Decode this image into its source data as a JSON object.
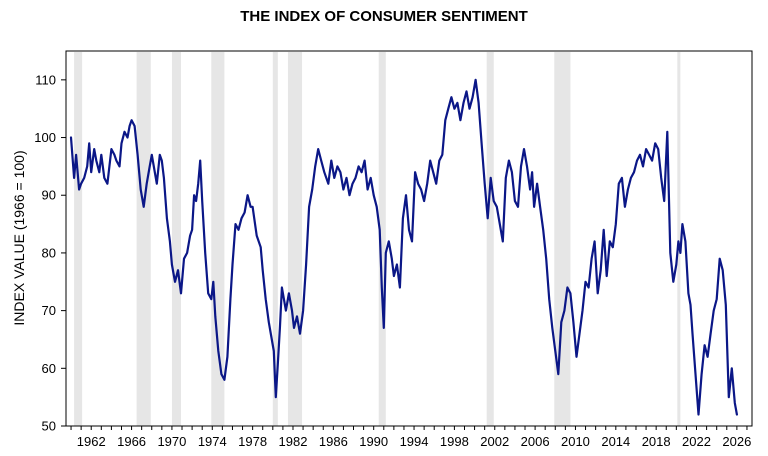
{
  "chart_data": {
    "type": "line",
    "title": "THE INDEX OF CONSUMER SENTIMENT",
    "xlabel": "",
    "ylabel": "INDEX VALUE (1966 = 100)",
    "ylim": [
      50,
      115
    ],
    "xlim": [
      1959.5,
      2027.5
    ],
    "y_ticks": [
      50,
      60,
      70,
      80,
      90,
      100,
      110
    ],
    "x_ticks": [
      1962,
      1966,
      1970,
      1974,
      1978,
      1982,
      1986,
      1990,
      1994,
      1998,
      2002,
      2006,
      2010,
      2014,
      2018,
      2022,
      2026
    ],
    "grid": false,
    "line_color": "#0b1787",
    "recession_color": "#e6e6e6",
    "recessions": [
      [
        1960.3,
        1961.1
      ],
      [
        1966.5,
        1967.9
      ],
      [
        1970.0,
        1970.9
      ],
      [
        1973.9,
        1975.2
      ],
      [
        1980.0,
        1980.5
      ],
      [
        1981.5,
        1982.9
      ],
      [
        1990.5,
        1991.2
      ],
      [
        2001.2,
        2001.9
      ],
      [
        2007.9,
        2009.5
      ],
      [
        2020.1,
        2020.4
      ]
    ],
    "series": [
      {
        "name": "",
        "x": [
          1960.0,
          1960.3,
          1960.5,
          1960.8,
          1961.0,
          1961.3,
          1961.6,
          1961.8,
          1962.0,
          1962.3,
          1962.5,
          1962.8,
          1963.0,
          1963.3,
          1963.6,
          1963.8,
          1964.0,
          1964.3,
          1964.5,
          1964.8,
          1965.0,
          1965.3,
          1965.6,
          1965.8,
          1966.0,
          1966.3,
          1966.6,
          1966.9,
          1967.2,
          1967.5,
          1967.8,
          1968.0,
          1968.3,
          1968.5,
          1968.8,
          1969.0,
          1969.2,
          1969.5,
          1969.8,
          1970.0,
          1970.3,
          1970.6,
          1970.9,
          1971.2,
          1971.5,
          1971.8,
          1972.0,
          1972.2,
          1972.4,
          1972.6,
          1972.8,
          1973.0,
          1973.3,
          1973.6,
          1973.9,
          1974.1,
          1974.3,
          1974.6,
          1974.9,
          1975.2,
          1975.5,
          1975.8,
          1976.0,
          1976.3,
          1976.6,
          1976.9,
          1977.2,
          1977.5,
          1977.8,
          1978.0,
          1978.4,
          1978.8,
          1979.0,
          1979.3,
          1979.6,
          1979.9,
          1980.1,
          1980.3,
          1980.5,
          1980.7,
          1980.9,
          1981.1,
          1981.3,
          1981.6,
          1981.9,
          1982.1,
          1982.4,
          1982.7,
          1983.0,
          1983.3,
          1983.6,
          1983.9,
          1984.2,
          1984.5,
          1984.8,
          1985.1,
          1985.5,
          1985.8,
          1986.1,
          1986.4,
          1986.7,
          1987.0,
          1987.3,
          1987.6,
          1987.9,
          1988.2,
          1988.5,
          1988.8,
          1989.1,
          1989.4,
          1989.7,
          1990.0,
          1990.3,
          1990.6,
          1990.8,
          1991.0,
          1991.2,
          1991.5,
          1991.8,
          1992.0,
          1992.3,
          1992.6,
          1992.9,
          1993.2,
          1993.5,
          1993.8,
          1994.1,
          1994.4,
          1994.7,
          1995.0,
          1995.3,
          1995.6,
          1995.9,
          1996.2,
          1996.5,
          1996.8,
          1997.1,
          1997.4,
          1997.7,
          1998.0,
          1998.3,
          1998.6,
          1998.9,
          1999.2,
          1999.5,
          1999.8,
          2000.1,
          2000.4,
          2000.7,
          2001.0,
          2001.3,
          2001.6,
          2001.9,
          2002.2,
          2002.5,
          2002.8,
          2003.1,
          2003.4,
          2003.7,
          2004.0,
          2004.3,
          2004.6,
          2004.9,
          2005.2,
          2005.5,
          2005.7,
          2005.9,
          2006.2,
          2006.5,
          2006.8,
          2007.1,
          2007.4,
          2007.7,
          2008.0,
          2008.3,
          2008.6,
          2008.9,
          2009.2,
          2009.5,
          2009.8,
          2010.1,
          2010.4,
          2010.7,
          2011.0,
          2011.3,
          2011.6,
          2011.9,
          2012.2,
          2012.5,
          2012.8,
          2013.1,
          2013.4,
          2013.7,
          2014.0,
          2014.3,
          2014.6,
          2014.9,
          2015.2,
          2015.5,
          2015.8,
          2016.1,
          2016.4,
          2016.7,
          2017.0,
          2017.3,
          2017.6,
          2017.9,
          2018.2,
          2018.5,
          2018.8,
          2019.1,
          2019.4,
          2019.7,
          2020.0,
          2020.2,
          2020.4,
          2020.6,
          2020.9,
          2021.2,
          2021.4,
          2021.6,
          2021.9,
          2022.2,
          2022.5,
          2022.8,
          2023.1,
          2023.4,
          2023.7,
          2024.0,
          2024.3,
          2024.6,
          2024.9,
          2025.2,
          2025.5,
          2025.8,
          2026.0
        ],
        "y": [
          100,
          93,
          97,
          91,
          92,
          93,
          95,
          99,
          94,
          98,
          96,
          94,
          97,
          93,
          92,
          95,
          98,
          97,
          96,
          95,
          99,
          101,
          100,
          102,
          103,
          102,
          97,
          91,
          88,
          92,
          95,
          97,
          94,
          92,
          97,
          96,
          93,
          86,
          82,
          78,
          75,
          77,
          73,
          79,
          80,
          83,
          84,
          90,
          89,
          92,
          96,
          89,
          80,
          73,
          72,
          75,
          69,
          63,
          59,
          58,
          62,
          72,
          78,
          85,
          84,
          86,
          87,
          90,
          88,
          88,
          83,
          81,
          77,
          72,
          68,
          65,
          63,
          55,
          61,
          67,
          74,
          72,
          70,
          73,
          70,
          67,
          69,
          66,
          70,
          78,
          88,
          91,
          95,
          98,
          96,
          94,
          92,
          96,
          93,
          95,
          94,
          91,
          93,
          90,
          92,
          93,
          95,
          94,
          96,
          91,
          93,
          90,
          88,
          84,
          74,
          67,
          80,
          82,
          79,
          76,
          78,
          74,
          86,
          90,
          84,
          82,
          94,
          92,
          91,
          89,
          92,
          96,
          94,
          92,
          96,
          97,
          103,
          105,
          107,
          105,
          106,
          103,
          106,
          108,
          105,
          107,
          110,
          106,
          99,
          92,
          86,
          93,
          89,
          88,
          85,
          82,
          93,
          96,
          94,
          89,
          88,
          95,
          98,
          95,
          91,
          94,
          88,
          92,
          88,
          84,
          79,
          72,
          67,
          63,
          59,
          68,
          70,
          74,
          73,
          68,
          62,
          66,
          70,
          75,
          74,
          79,
          82,
          73,
          77,
          84,
          76,
          82,
          81,
          85,
          92,
          93,
          88,
          91,
          93,
          94,
          96,
          97,
          95,
          98,
          97,
          96,
          99,
          98,
          93,
          89,
          101,
          80,
          75,
          78,
          82,
          80,
          85,
          82,
          73,
          71,
          66,
          59,
          52,
          59,
          64,
          62,
          66,
          70,
          72,
          79,
          77,
          71,
          55,
          60,
          54,
          52
        ]
      }
    ]
  }
}
